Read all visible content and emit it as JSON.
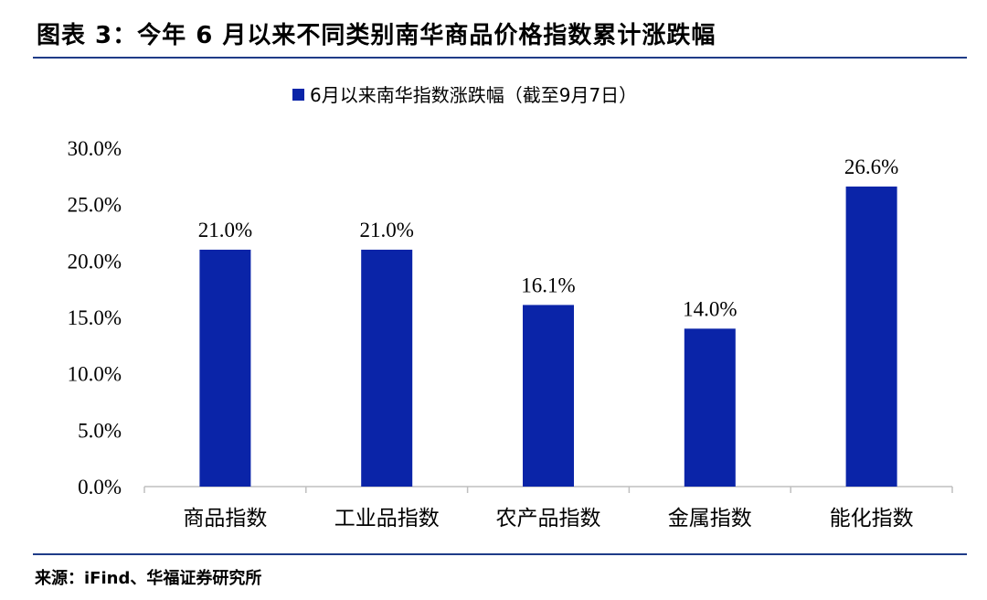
{
  "figure": {
    "title": "图表 3：今年 6 月以来不同类别南华商品价格指数累计涨跌幅",
    "source": "来源：iFind、华福证券研究所"
  },
  "colors": {
    "bar": "#0A24A8",
    "rule": "#1F3C88",
    "axis": "#BFBFBF",
    "text": "#000000"
  },
  "chart_data": {
    "type": "bar",
    "categories": [
      "商品指数",
      "工业品指数",
      "农产品指数",
      "金属指数",
      "能化指数"
    ],
    "series": [
      {
        "name": "6月以来南华指数涨跌幅（截至9月7日）",
        "values": [
          21.0,
          21.0,
          16.1,
          14.0,
          26.6
        ],
        "labels": [
          "21.0%",
          "21.0%",
          "16.1%",
          "14.0%",
          "26.6%"
        ]
      }
    ],
    "yticks": [
      "0.0%",
      "5.0%",
      "10.0%",
      "15.0%",
      "20.0%",
      "25.0%",
      "30.0%"
    ],
    "ylim": [
      0,
      30
    ],
    "legend_position": "top-center",
    "grid": false
  }
}
